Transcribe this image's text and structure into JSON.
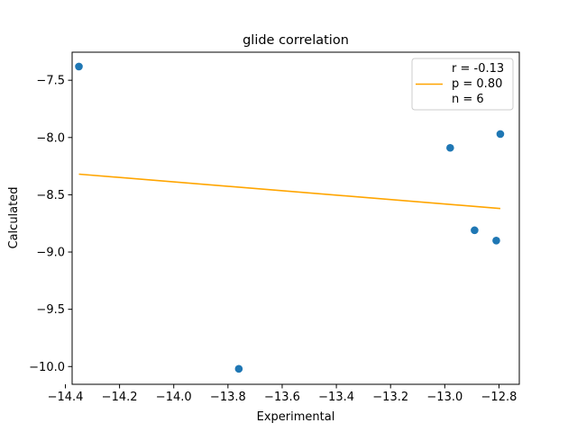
{
  "chart_data": {
    "type": "scatter",
    "title": "glide correlation",
    "xlabel": "Experimental",
    "ylabel": "Calculated",
    "xlim": [
      -14.375,
      -12.725
    ],
    "ylim": [
      -10.155,
      -7.255
    ],
    "xticks": [
      -14.4,
      -14.2,
      -14.0,
      -13.8,
      -13.6,
      -13.4,
      -13.2,
      -13.0,
      -12.8
    ],
    "xtick_labels": [
      "−14.4",
      "−14.2",
      "−14.0",
      "−13.8",
      "−13.6",
      "−13.4",
      "−13.2",
      "−13.0",
      "−12.8"
    ],
    "yticks": [
      -10.0,
      -9.5,
      -9.0,
      -8.5,
      -8.0,
      -7.5
    ],
    "ytick_labels": [
      "−10.0",
      "−9.5",
      "−9.0",
      "−8.5",
      "−8.0",
      "−7.5"
    ],
    "grid": false,
    "series": [
      {
        "kind": "scatter",
        "color": "#1f77b4",
        "points": [
          {
            "x": -14.35,
            "y": -7.38
          },
          {
            "x": -13.76,
            "y": -10.02
          },
          {
            "x": -12.98,
            "y": -8.09
          },
          {
            "x": -12.89,
            "y": -8.81
          },
          {
            "x": -12.81,
            "y": -8.9
          },
          {
            "x": -12.795,
            "y": -7.97
          }
        ]
      },
      {
        "kind": "line",
        "color": "#ffa500",
        "points": [
          {
            "x": -14.35,
            "y": -8.32
          },
          {
            "x": -12.795,
            "y": -8.62
          }
        ]
      }
    ],
    "legend": {
      "placement": "upper-right",
      "entries": [
        "r = -0.13",
        "p = 0.80",
        "n = 6"
      ]
    }
  }
}
